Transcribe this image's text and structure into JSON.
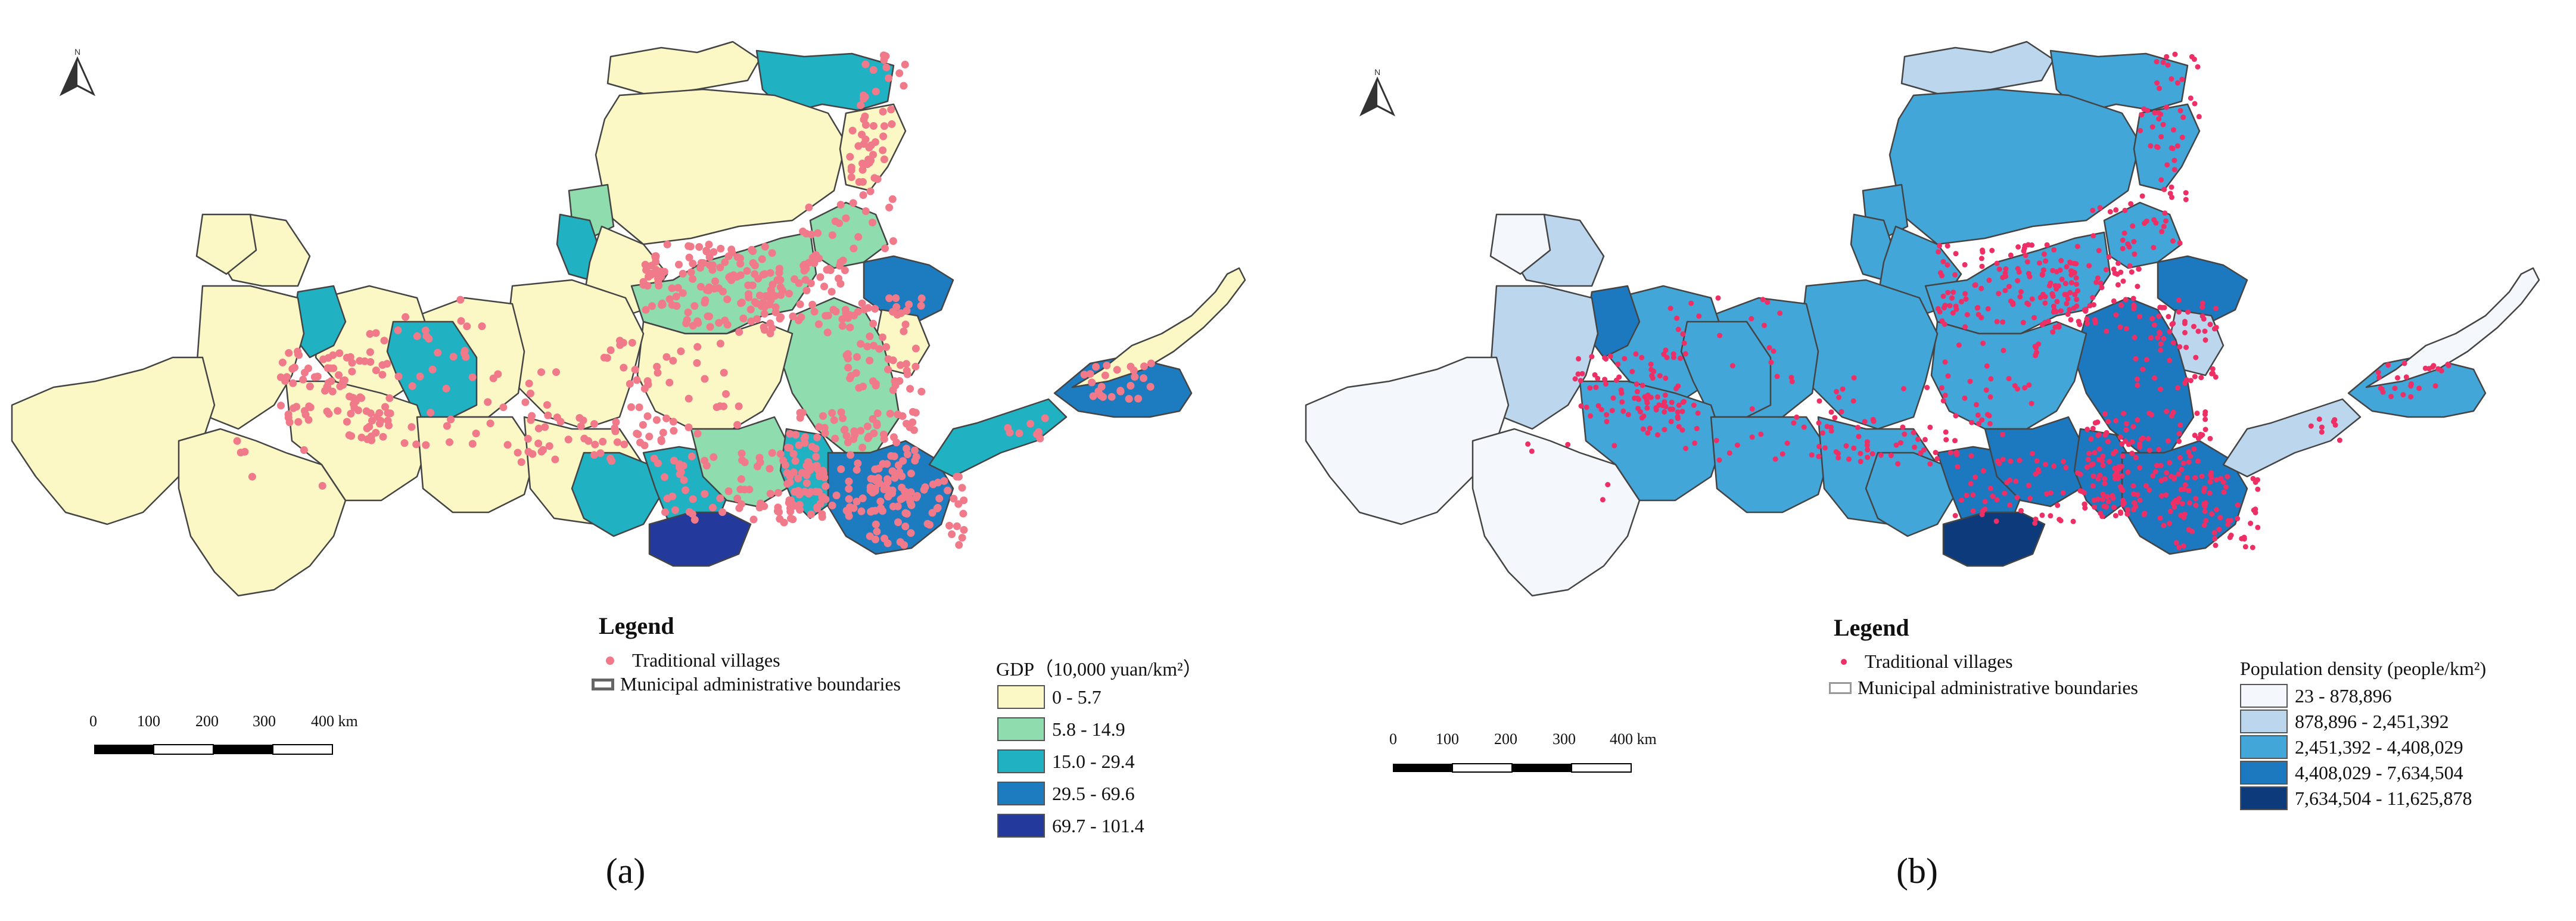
{
  "panels": [
    {
      "id": "a",
      "caption": "(a)",
      "legend": {
        "title": "Legend",
        "villages_label": "Traditional villages",
        "boundaries_label": "Municipal administrative boundaries",
        "village_color": "#f07a8a",
        "classification_title": "GDP（10,000 yuan/km²）",
        "classes": [
          {
            "label": "0 - 5.7",
            "color": "#fbf8c6"
          },
          {
            "label": "5.8 - 14.9",
            "color": "#8fdcae"
          },
          {
            "label": "15.0 - 29.4",
            "color": "#20b1c3"
          },
          {
            "label": "29.5 - 69.6",
            "color": "#1d7cc0"
          },
          {
            "label": "69.7 - 101.4",
            "color": "#233a9c"
          }
        ]
      },
      "scale_bar": {
        "ticks": [
          "0",
          "100",
          "200",
          "300",
          "400 km"
        ]
      }
    },
    {
      "id": "b",
      "caption": "(b)",
      "legend": {
        "title": "Legend",
        "villages_label": "Traditional villages",
        "boundaries_label": "Municipal administrative boundaries",
        "village_color": "#ee2f66",
        "classification_title": "Population density (people/km²)",
        "classes": [
          {
            "label": "23 - 878,896",
            "color": "#f4f8fd"
          },
          {
            "label": "878,896 - 2,451,392",
            "color": "#bcd6ee"
          },
          {
            "label": "2,451,392 - 4,408,029",
            "color": "#43a6d9"
          },
          {
            "label": "4,408,029 - 7,634,504",
            "color": "#1c78bf"
          },
          {
            "label": "7,634,504 - 11,625,878",
            "color": "#0c3a7a"
          }
        ]
      },
      "scale_bar": {
        "ticks": [
          "0",
          "100",
          "200",
          "300",
          "400 km"
        ]
      }
    }
  ]
}
